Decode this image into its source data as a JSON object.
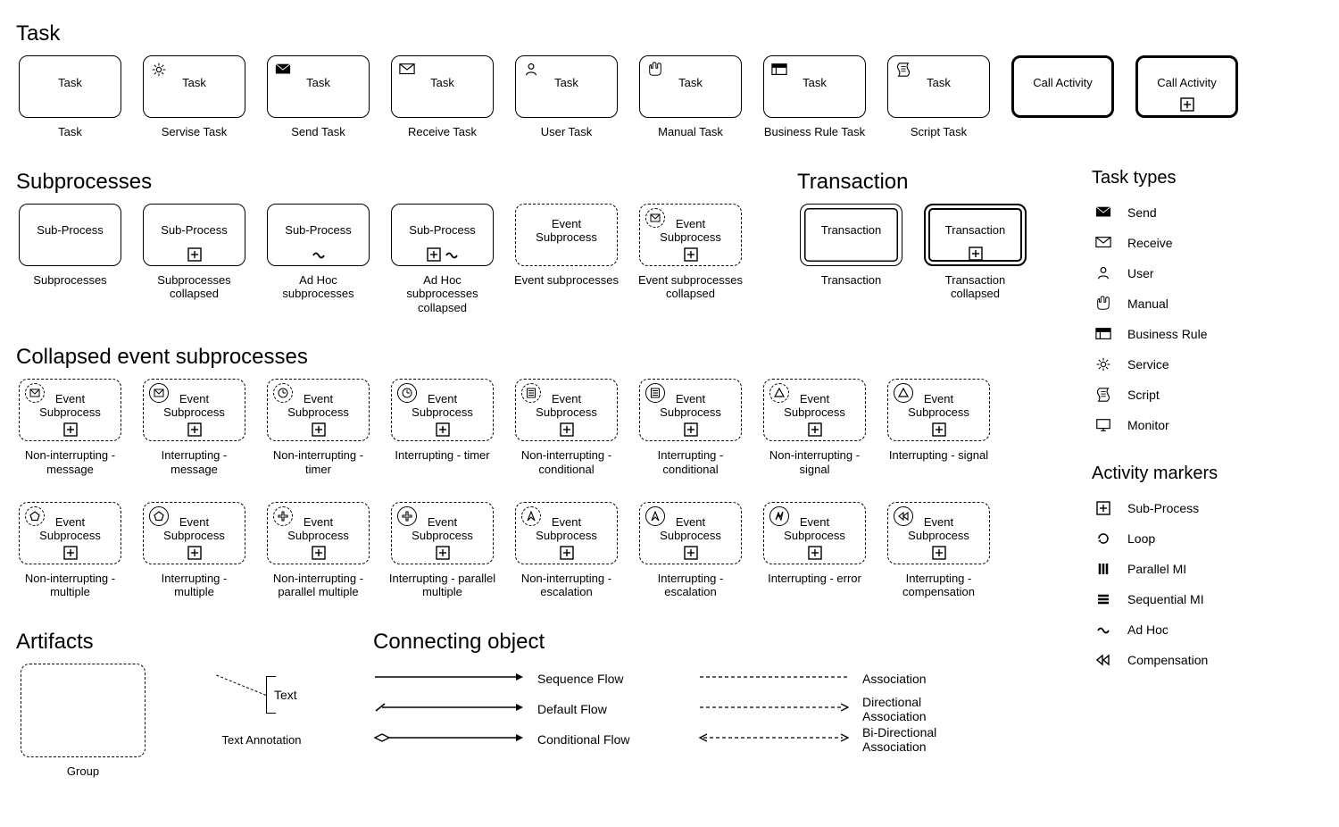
{
  "colors": {
    "stroke": "#000000",
    "bg": "#ffffff"
  },
  "sections": {
    "task": "Task",
    "subprocesses": "Subprocesses",
    "transaction": "Transaction",
    "collapsed_event": "Collapsed event subprocesses",
    "artifacts": "Artifacts",
    "connecting": "Connecting object",
    "task_types": "Task types",
    "activity_markers": "Activity markers"
  },
  "task_row": [
    {
      "label": "Task",
      "caption": "Task",
      "icon": null,
      "border": "solid"
    },
    {
      "label": "Task",
      "caption": "Servise Task",
      "icon": "service",
      "border": "solid"
    },
    {
      "label": "Task",
      "caption": "Send Task",
      "icon": "send",
      "border": "solid"
    },
    {
      "label": "Task",
      "caption": "Receive Task",
      "icon": "receive",
      "border": "solid"
    },
    {
      "label": "Task",
      "caption": "User Task",
      "icon": "user",
      "border": "solid"
    },
    {
      "label": "Task",
      "caption": "Manual Task",
      "icon": "manual",
      "border": "solid"
    },
    {
      "label": "Task",
      "caption": "Business Rule Task",
      "icon": "br",
      "border": "solid"
    },
    {
      "label": "Task",
      "caption": "Script Task",
      "icon": "script",
      "border": "solid"
    },
    {
      "label": "Call Activity",
      "caption": "",
      "icon": null,
      "border": "thick"
    },
    {
      "label": "Call Activity",
      "caption": "",
      "icon": null,
      "border": "thick",
      "markers": [
        "subproc"
      ]
    }
  ],
  "subprocess_row": [
    {
      "label": "Sub-Process",
      "caption": "Subprocesses",
      "border": "solid"
    },
    {
      "label": "Sub-Process",
      "caption": "Subprocesses collapsed",
      "border": "solid",
      "markers": [
        "subproc"
      ]
    },
    {
      "label": "Sub-Process",
      "caption": "Ad Hoc subprocesses",
      "border": "solid",
      "markers": [
        "adhoc"
      ]
    },
    {
      "label": "Sub-Process",
      "caption": "Ad Hoc subprocesses collapsed",
      "border": "solid",
      "markers": [
        "subproc",
        "adhoc"
      ]
    },
    {
      "label": "Event Subprocess",
      "caption": "Event subprocesses",
      "border": "dashed"
    },
    {
      "label": "Event Subprocess",
      "caption": "Event subprocesses collapsed",
      "border": "dashed",
      "markers": [
        "subproc"
      ],
      "ev_icon": "message",
      "ev_style": "dashed"
    }
  ],
  "transaction_row": [
    {
      "label": "Transaction",
      "caption": "Transaction",
      "border": "dbl"
    },
    {
      "label": "Transaction",
      "caption": "Transaction collapsed",
      "border": "dbl thick",
      "markers": [
        "subproc"
      ]
    }
  ],
  "collapsed_rows": [
    [
      {
        "label": "Event Subprocess",
        "caption": "Non-interrupting - message",
        "ev_icon": "message",
        "ev_style": "dashed"
      },
      {
        "label": "Event Subprocess",
        "caption": "Interrupting - message",
        "ev_icon": "message",
        "ev_style": "solid"
      },
      {
        "label": "Event Subprocess",
        "caption": "Non-interrupting - timer",
        "ev_icon": "timer",
        "ev_style": "dashed"
      },
      {
        "label": "Event Subprocess",
        "caption": "Interrupting - timer",
        "ev_icon": "timer",
        "ev_style": "solid"
      },
      {
        "label": "Event Subprocess",
        "caption": "Non-interrupting - conditional",
        "ev_icon": "conditional",
        "ev_style": "dashed"
      },
      {
        "label": "Event Subprocess",
        "caption": "Interrupting - conditional",
        "ev_icon": "conditional",
        "ev_style": "solid"
      },
      {
        "label": "Event Subprocess",
        "caption": "Non-interrupting - signal",
        "ev_icon": "signal",
        "ev_style": "dashed"
      },
      {
        "label": "Event Subprocess",
        "caption": "Interrupting - signal",
        "ev_icon": "signal",
        "ev_style": "solid"
      }
    ],
    [
      {
        "label": "Event Subprocess",
        "caption": "Non-interrupting - multiple",
        "ev_icon": "multiple",
        "ev_style": "dashed"
      },
      {
        "label": "Event Subprocess",
        "caption": "Interrupting - multiple",
        "ev_icon": "multiple",
        "ev_style": "solid"
      },
      {
        "label": "Event Subprocess",
        "caption": "Non-interrupting - parallel multiple",
        "ev_icon": "parallel-multiple",
        "ev_style": "dashed"
      },
      {
        "label": "Event Subprocess",
        "caption": "Interrupting - parallel multiple",
        "ev_icon": "parallel-multiple",
        "ev_style": "solid"
      },
      {
        "label": "Event Subprocess",
        "caption": "Non-interrupting - escalation",
        "ev_icon": "escalation",
        "ev_style": "dashed"
      },
      {
        "label": "Event Subprocess",
        "caption": "Interrupting - escalation",
        "ev_icon": "escalation",
        "ev_style": "solid"
      },
      {
        "label": "Event Subprocess",
        "caption": "Interrupting - error",
        "ev_icon": "error",
        "ev_style": "solid"
      },
      {
        "label": "Event Subprocess",
        "caption": "Interrupting - compensation",
        "ev_icon": "compensation",
        "ev_style": "solid"
      }
    ]
  ],
  "task_types_legend": [
    {
      "icon": "send",
      "label": "Send"
    },
    {
      "icon": "receive",
      "label": "Receive"
    },
    {
      "icon": "user",
      "label": "User"
    },
    {
      "icon": "manual",
      "label": "Manual"
    },
    {
      "icon": "br",
      "label": "Business Rule"
    },
    {
      "icon": "service",
      "label": "Service"
    },
    {
      "icon": "script",
      "label": "Script"
    },
    {
      "icon": "monitor",
      "label": "Monitor"
    }
  ],
  "activity_markers_legend": [
    {
      "icon": "subproc",
      "label": "Sub-Process"
    },
    {
      "icon": "loop",
      "label": "Loop"
    },
    {
      "icon": "parallel-mi",
      "label": "Parallel MI"
    },
    {
      "icon": "sequential-mi",
      "label": "Sequential MI"
    },
    {
      "icon": "adhoc",
      "label": "Ad Hoc"
    },
    {
      "icon": "compensation",
      "label": "Compensation"
    }
  ],
  "artifacts": {
    "group_caption": "Group",
    "text_annotation_label": "Text",
    "text_annotation_caption": "Text Annotation"
  },
  "connecting": [
    {
      "style": "seq",
      "label": "Sequence Flow"
    },
    {
      "style": "default",
      "label": "Default Flow"
    },
    {
      "style": "conditional",
      "label": "Conditional Flow"
    }
  ],
  "connecting_right": [
    {
      "style": "assoc",
      "label": "Association"
    },
    {
      "style": "dir-assoc",
      "label": "Directional Association"
    },
    {
      "style": "bidir-assoc",
      "label": "Bi-Directional Association"
    }
  ]
}
